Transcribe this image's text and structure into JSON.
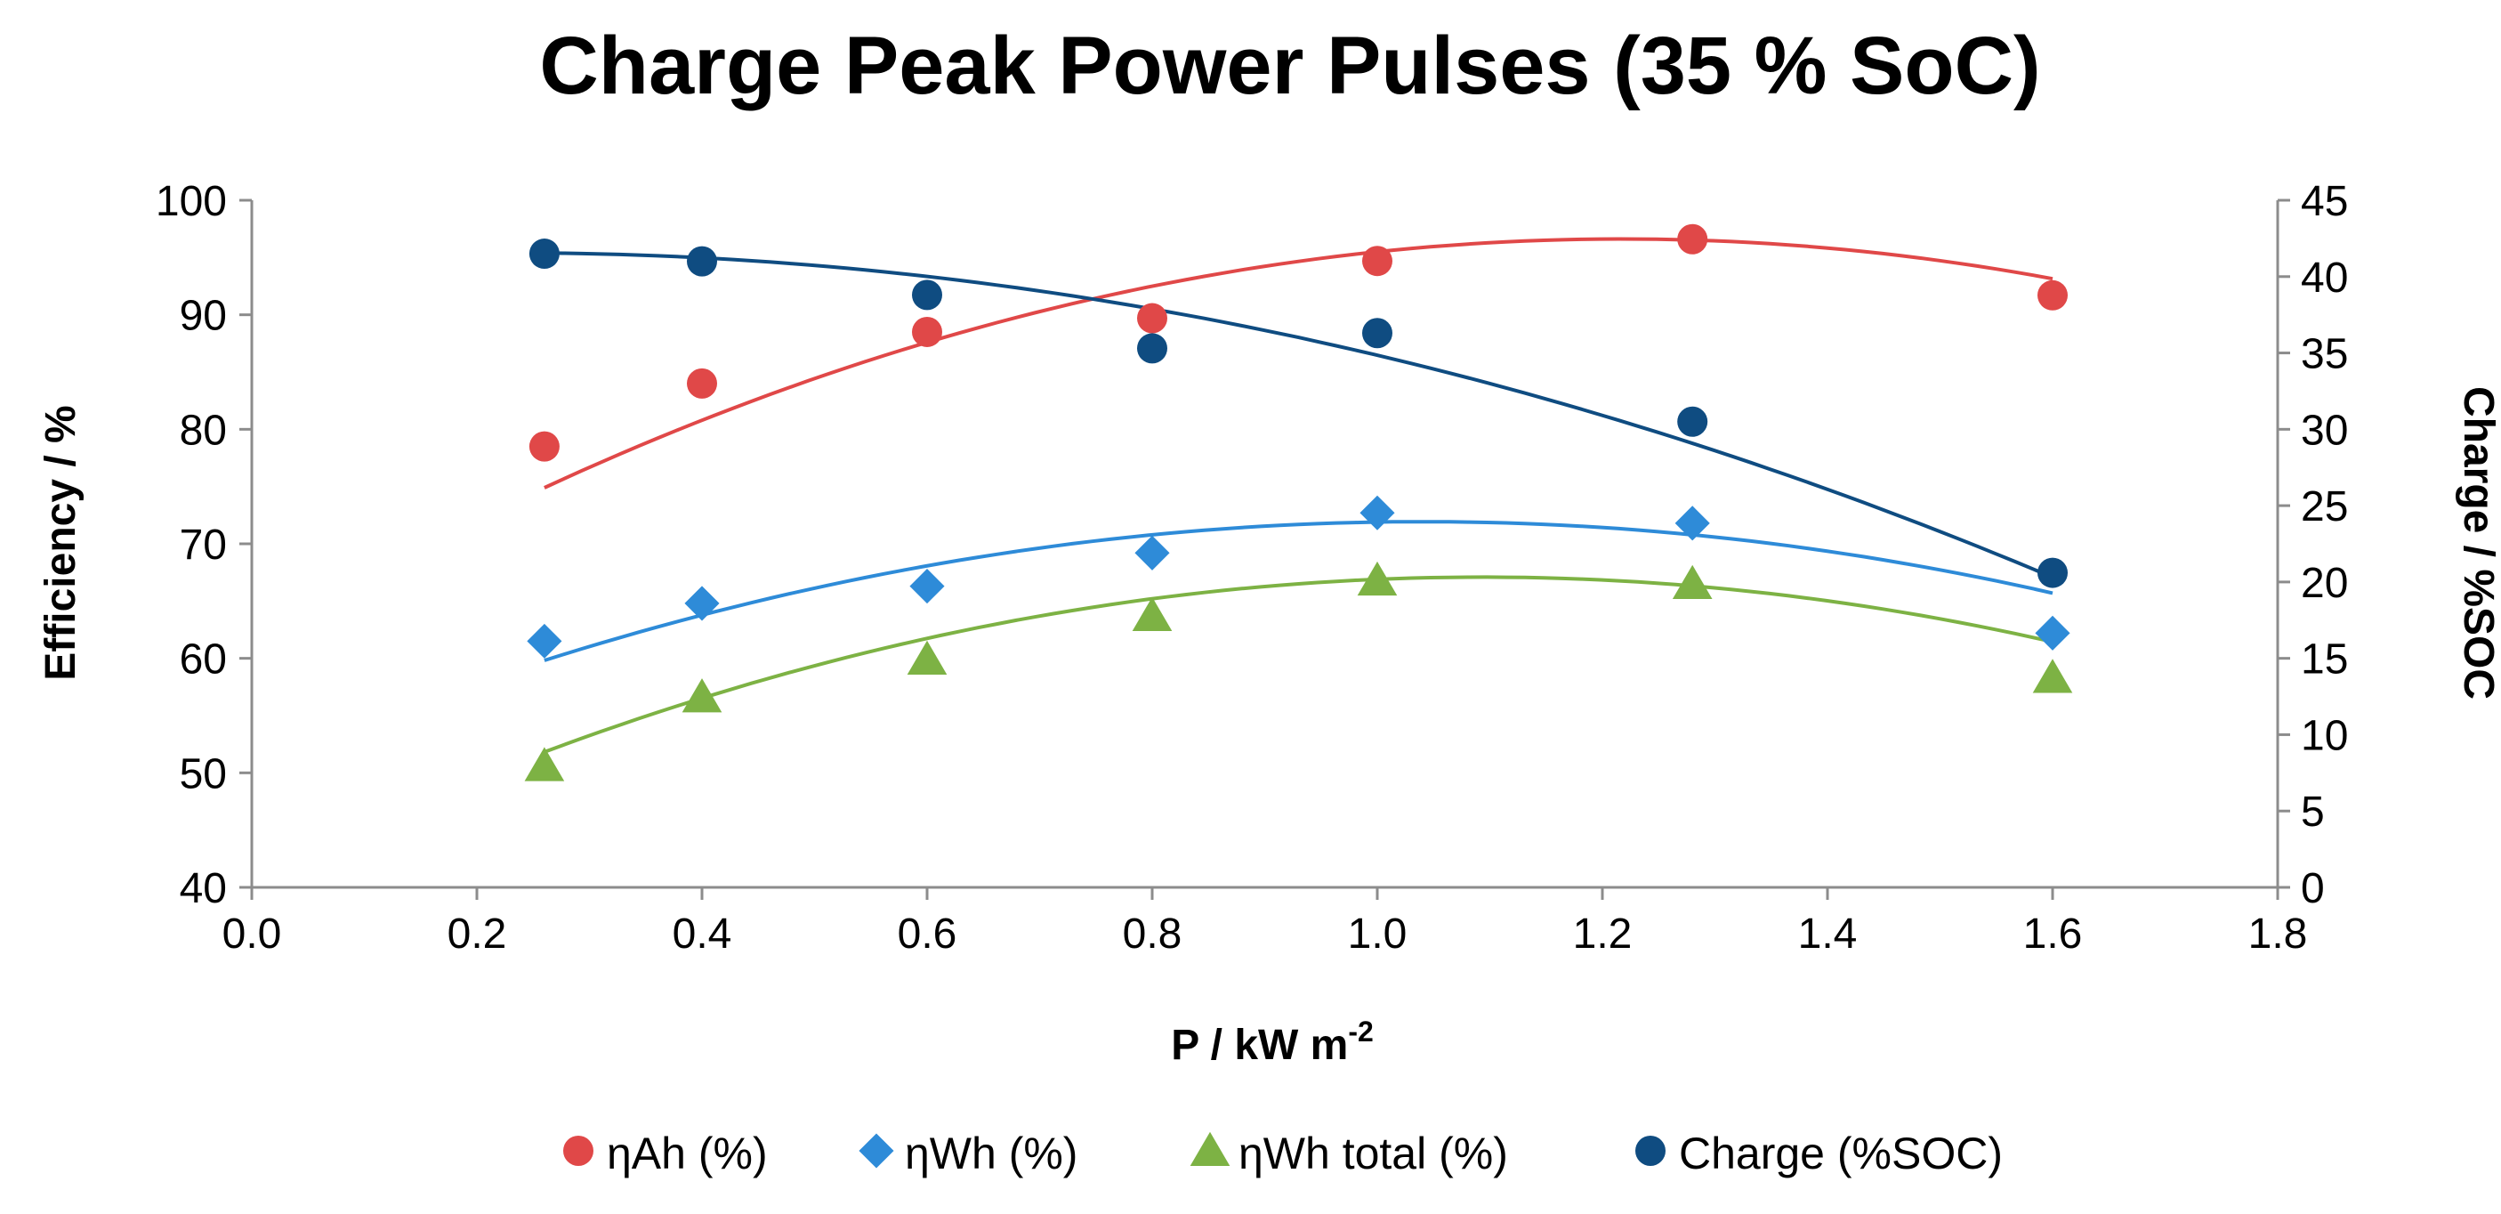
{
  "chart_data": {
    "type": "scatter",
    "title": "Charge Peak Power Pulses (35 % SoC)",
    "xlabel_main": "P / kW m",
    "xlabel_sup": "-2",
    "ylabel": "Efficiency / %",
    "y2label": "Charge / %SOC",
    "xlim": [
      0.0,
      1.8
    ],
    "ylim": [
      40,
      100
    ],
    "y2lim": [
      0,
      45
    ],
    "x_ticks": [
      "0.0",
      "0.2",
      "0.4",
      "0.6",
      "0.8",
      "1.0",
      "1.2",
      "1.4",
      "1.6",
      "1.8"
    ],
    "y_ticks": [
      "40",
      "50",
      "60",
      "70",
      "80",
      "90",
      "100"
    ],
    "y2_ticks": [
      "0",
      "5",
      "10",
      "15",
      "20",
      "25",
      "30",
      "35",
      "40",
      "45"
    ],
    "legend_position": "bottom",
    "series": [
      {
        "name": "ηAh (%)",
        "axis": "left",
        "marker": "circle",
        "color": "#E04848",
        "x": [
          0.26,
          0.4,
          0.6,
          0.8,
          1.0,
          1.28,
          1.6
        ],
        "y": [
          78.5,
          84.0,
          88.5,
          89.7,
          94.7,
          96.6,
          91.7
        ],
        "trend": [
          -23.7,
          57.7,
          61.5
        ]
      },
      {
        "name": "ηWh (%)",
        "axis": "left",
        "marker": "diamond",
        "color": "#2E8BD8",
        "x": [
          0.26,
          0.4,
          0.6,
          0.8,
          1.0,
          1.28,
          1.6
        ],
        "y": [
          61.5,
          64.8,
          66.3,
          69.2,
          72.7,
          71.8,
          62.2
        ],
        "trend": [
          -19.9,
          41.4,
          50.4
        ]
      },
      {
        "name": "ηWh total (%)",
        "axis": "left",
        "marker": "triangle",
        "color": "#7DB244",
        "x": [
          0.26,
          0.4,
          0.6,
          0.8,
          1.0,
          1.28,
          1.6
        ],
        "y": [
          50.6,
          56.6,
          59.9,
          63.7,
          66.8,
          66.5,
          58.3
        ],
        "trend": [
          -22.0,
          48.1,
          40.8
        ]
      },
      {
        "name": "Charge (%SOC)",
        "axis": "right",
        "marker": "circle",
        "color": "#0F4C81",
        "x": [
          0.26,
          0.4,
          0.6,
          0.8,
          1.0,
          1.28,
          1.6
        ],
        "y": [
          41.5,
          41.0,
          38.8,
          35.3,
          36.3,
          30.5,
          20.6
        ],
        "trend": [
          -11.33,
          5.23,
          40.95
        ]
      }
    ]
  }
}
